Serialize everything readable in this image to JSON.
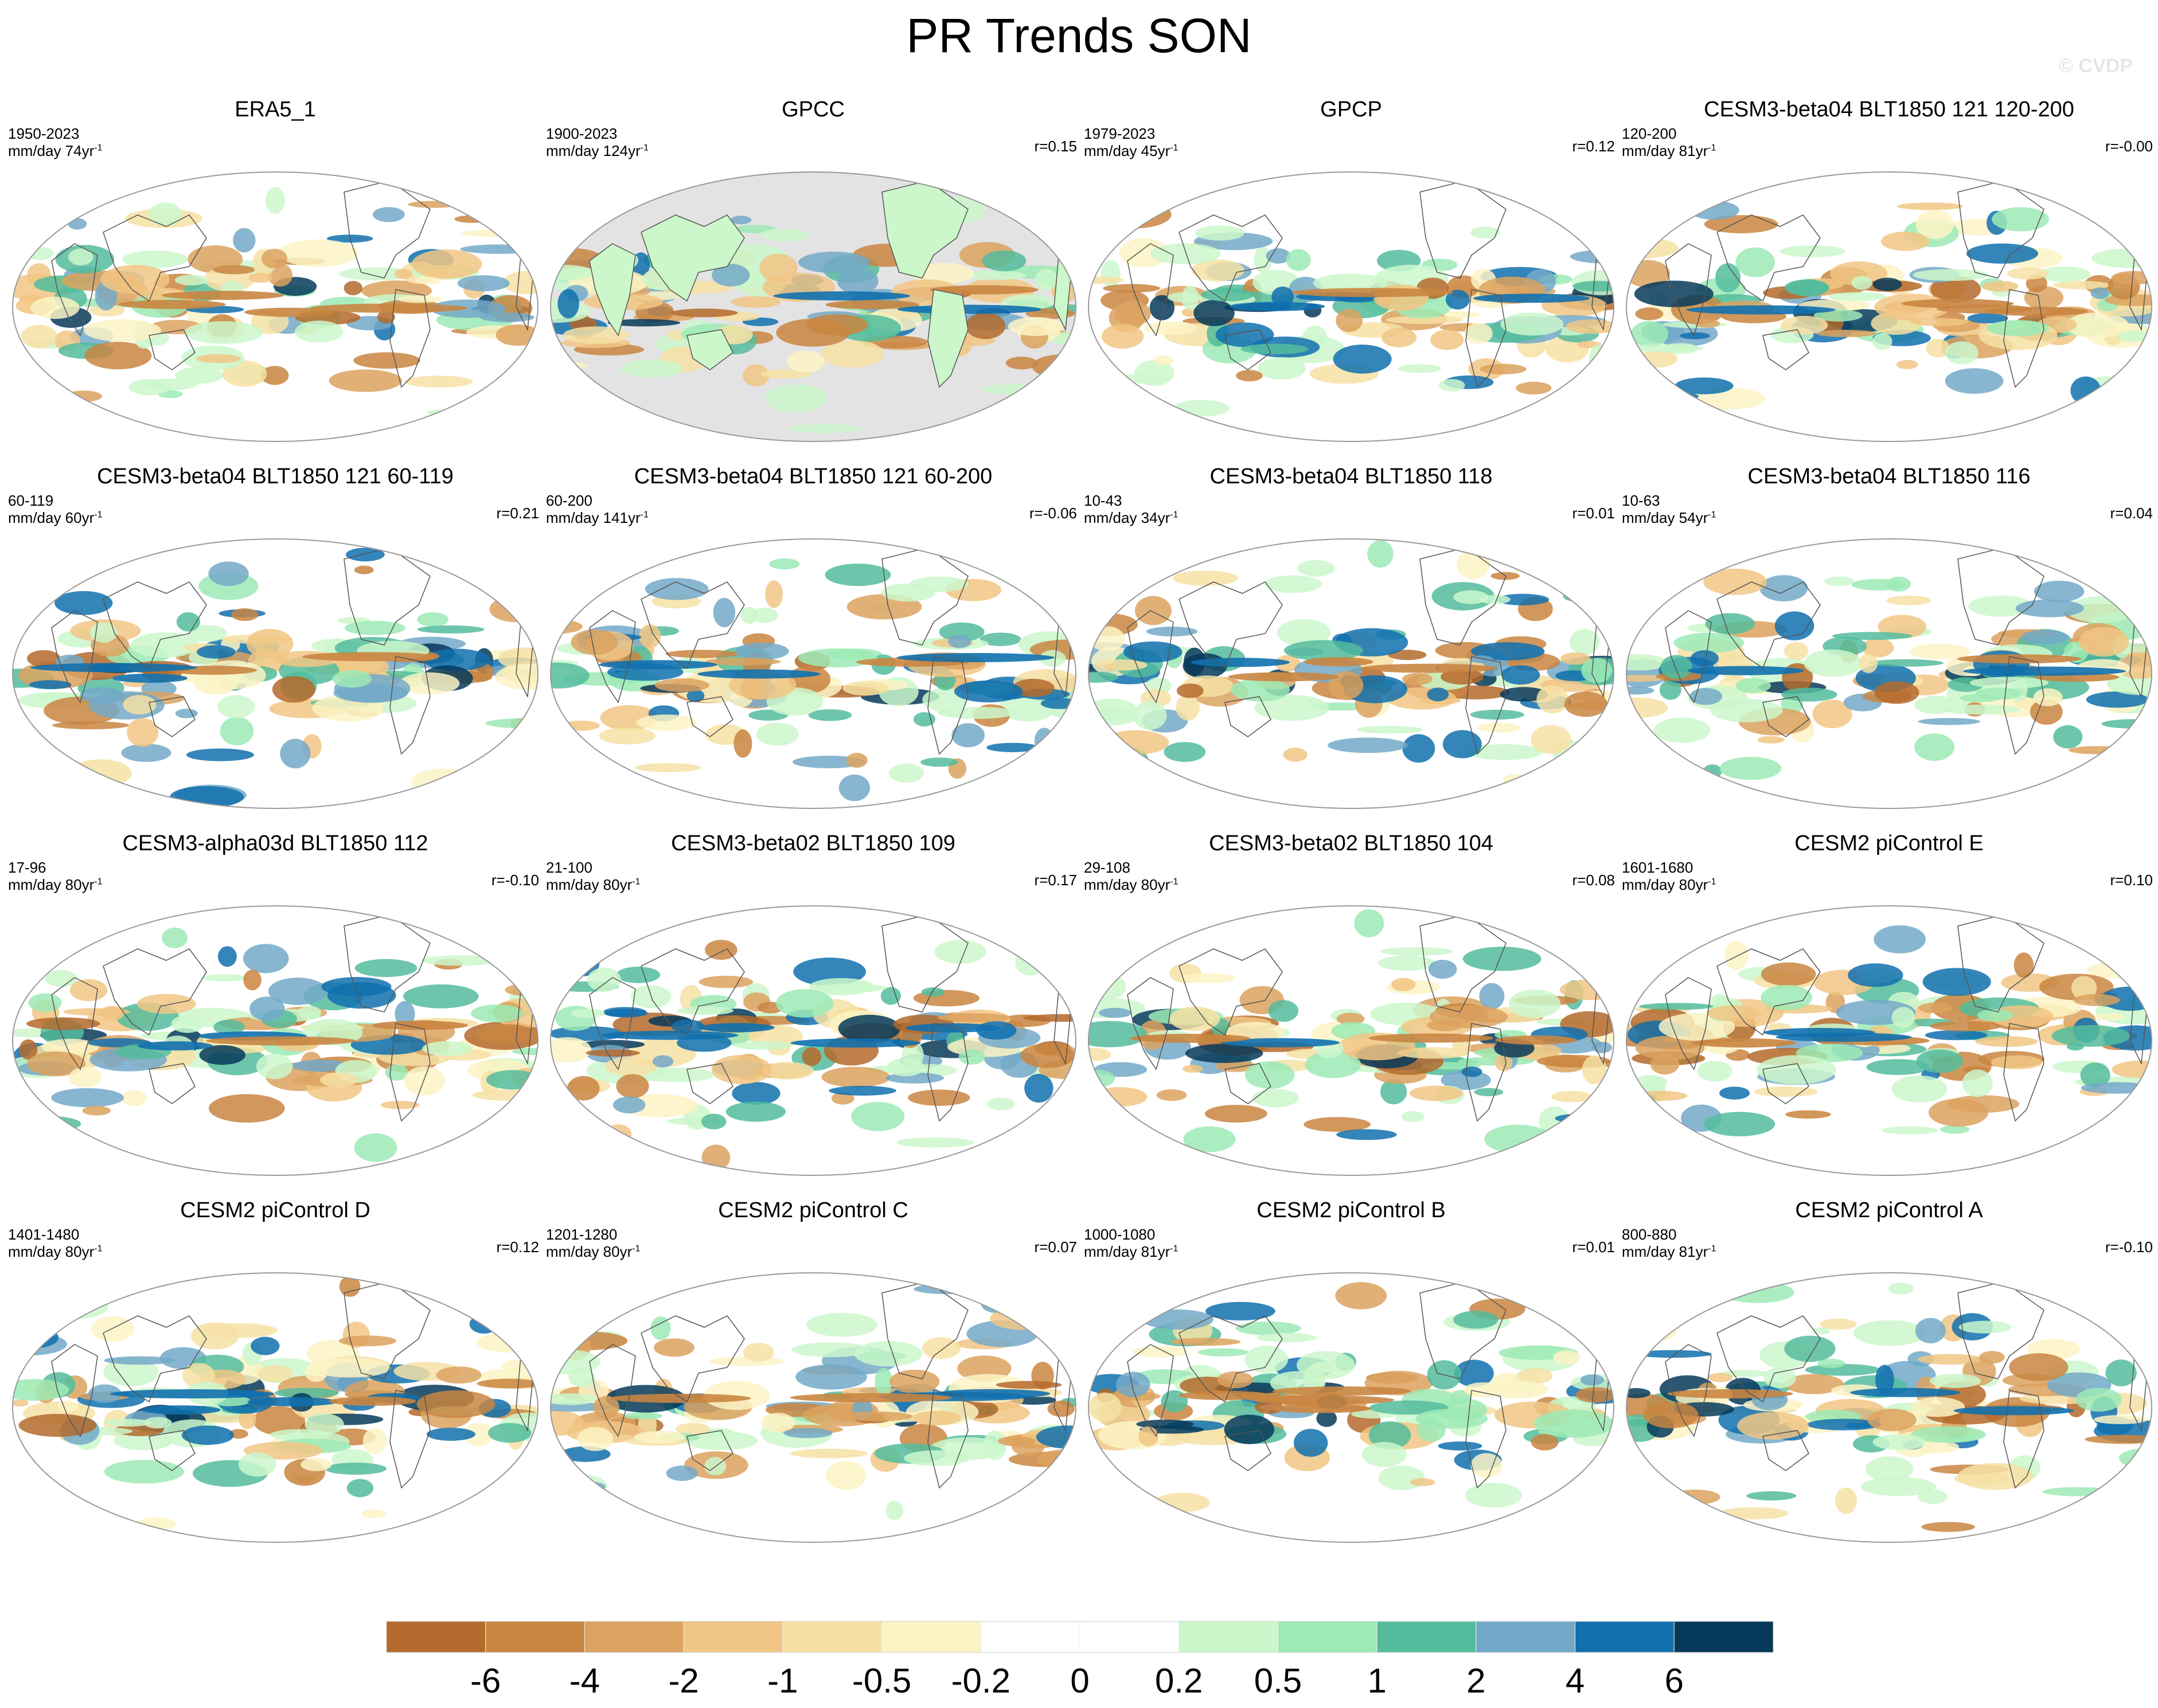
{
  "title": "PR Trends SON",
  "watermark": "© CVDP",
  "panels": [
    {
      "title": "ERA5_1",
      "period": "1950-2023",
      "units": "mm/day 74yr",
      "r": ""
    },
    {
      "title": "GPCC",
      "period": "1900-2023",
      "units": "mm/day 124yr",
      "r": "r=0.15"
    },
    {
      "title": "GPCP",
      "period": "1979-2023",
      "units": "mm/day 45yr",
      "r": "r=0.12"
    },
    {
      "title": "CESM3-beta04 BLT1850 121 120-200",
      "period": "120-200",
      "units": "mm/day 81yr",
      "r": "r=-0.00"
    },
    {
      "title": "CESM3-beta04 BLT1850 121 60-119",
      "period": "60-119",
      "units": "mm/day 60yr",
      "r": "r=0.21"
    },
    {
      "title": "CESM3-beta04 BLT1850 121 60-200",
      "period": "60-200",
      "units": "mm/day 141yr",
      "r": "r=-0.06"
    },
    {
      "title": "CESM3-beta04 BLT1850 118",
      "period": "10-43",
      "units": "mm/day 34yr",
      "r": "r=0.01"
    },
    {
      "title": "CESM3-beta04 BLT1850 116",
      "period": "10-63",
      "units": "mm/day 54yr",
      "r": "r=0.04"
    },
    {
      "title": "CESM3-alpha03d BLT1850 112",
      "period": "17-96",
      "units": "mm/day 80yr",
      "r": "r=-0.10"
    },
    {
      "title": "CESM3-beta02 BLT1850 109",
      "period": "21-100",
      "units": "mm/day 80yr",
      "r": "r=0.17"
    },
    {
      "title": "CESM3-beta02 BLT1850 104",
      "period": "29-108",
      "units": "mm/day 80yr",
      "r": "r=0.08"
    },
    {
      "title": "CESM2 piControl E",
      "period": "1601-1680",
      "units": "mm/day 80yr",
      "r": "r=0.10"
    },
    {
      "title": "CESM2 piControl D",
      "period": "1401-1480",
      "units": "mm/day 80yr",
      "r": "r=0.12"
    },
    {
      "title": "CESM2 piControl C",
      "period": "1201-1280",
      "units": "mm/day 80yr",
      "r": "r=0.07"
    },
    {
      "title": "CESM2 piControl B",
      "period": "1000-1080",
      "units": "mm/day 81yr",
      "r": "r=0.01"
    },
    {
      "title": "CESM2 piControl A",
      "period": "800-880",
      "units": "mm/day 81yr",
      "r": "r=-0.10"
    }
  ],
  "colorbar": {
    "labels": [
      "-6",
      "-4",
      "-2",
      "-1",
      "-0.5",
      "-0.2",
      "0",
      "0.2",
      "0.5",
      "1",
      "2",
      "4",
      "6"
    ],
    "colors": [
      "#b46a2c",
      "#c98541",
      "#dca25f",
      "#f1c684",
      "#f6e0a4",
      "#fbf3c4",
      "#ffffff",
      "#ffffff",
      "#cbf7cb",
      "#9ceab5",
      "#54bc9c",
      "#73a9c8",
      "#1170ae",
      "#06395a"
    ]
  },
  "chart_data": {
    "type": "heatmap",
    "title": "PR Trends SON",
    "projection": "Robinson (Pacific-centered)",
    "units": "mm/day",
    "land_mask_color": "#e3e3e3",
    "color_levels": [
      -6,
      -4,
      -2,
      -1,
      -0.5,
      -0.2,
      0,
      0.2,
      0.5,
      1,
      2,
      4,
      6
    ],
    "panel_count": 16,
    "layout": "4x4 grid"
  }
}
